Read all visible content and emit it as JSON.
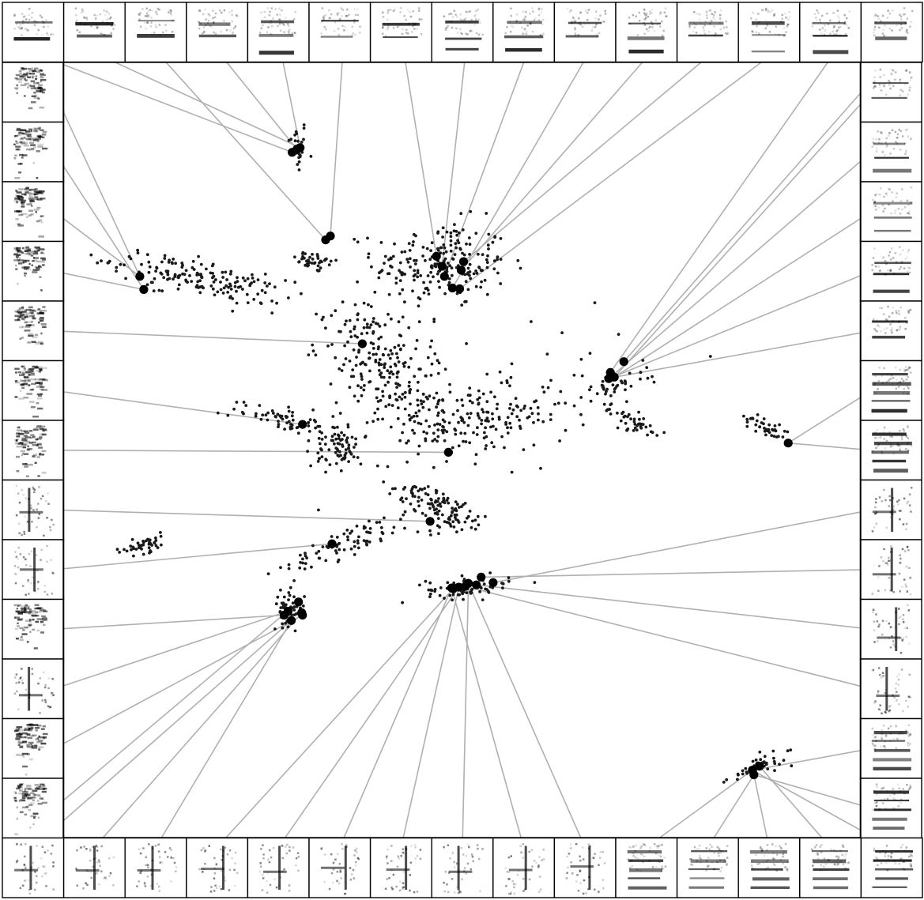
{
  "colors": {
    "point": "#1a1a1a",
    "highlight": "#000000",
    "leader": "#b0b0b0",
    "frame": "#000000",
    "spectrogram_ink": "#000000"
  },
  "chart_data": {
    "type": "scatter",
    "title": "",
    "xlabel": "",
    "ylabel": "",
    "grid": false,
    "legend": "none",
    "xlim": [
      0,
      1
    ],
    "ylim": [
      0,
      1
    ],
    "point_clusters": [
      {
        "c": [
          0.294,
          0.892
        ],
        "n": 25,
        "spread": [
          0.006,
          0.018
        ],
        "tilt": 0.0
      },
      {
        "c": [
          0.318,
          0.742
        ],
        "n": 40,
        "spread": [
          0.015,
          0.006
        ],
        "tilt": -0.25
      },
      {
        "c": [
          0.473,
          0.74
        ],
        "n": 220,
        "spread": [
          0.042,
          0.028
        ],
        "tilt": 0.0
      },
      {
        "c": [
          0.17,
          0.721
        ],
        "n": 170,
        "spread": [
          0.055,
          0.011
        ],
        "tilt": -0.22
      },
      {
        "c": [
          0.402,
          0.613
        ],
        "n": 220,
        "spread": [
          0.028,
          0.045
        ],
        "tilt": 0.8
      },
      {
        "c": [
          0.505,
          0.535
        ],
        "n": 160,
        "spread": [
          0.065,
          0.022
        ],
        "tilt": 0.08
      },
      {
        "c": [
          0.28,
          0.541
        ],
        "n": 70,
        "spread": [
          0.035,
          0.009
        ],
        "tilt": -0.18
      },
      {
        "c": [
          0.346,
          0.502
        ],
        "n": 70,
        "spread": [
          0.016,
          0.012
        ],
        "tilt": 0.5
      },
      {
        "c": [
          0.471,
          0.426
        ],
        "n": 120,
        "spread": [
          0.013,
          0.03
        ],
        "tilt": 1.05
      },
      {
        "c": [
          0.361,
          0.383
        ],
        "n": 80,
        "spread": [
          0.042,
          0.009
        ],
        "tilt": 0.38
      },
      {
        "c": [
          0.1,
          0.377
        ],
        "n": 45,
        "spread": [
          0.018,
          0.005
        ],
        "tilt": 0.28
      },
      {
        "c": [
          0.508,
          0.322
        ],
        "n": 70,
        "spread": [
          0.026,
          0.007
        ],
        "tilt": 0.05
      },
      {
        "c": [
          0.283,
          0.296
        ],
        "n": 50,
        "spread": [
          0.01,
          0.011
        ],
        "tilt": 0.0
      },
      {
        "c": [
          0.69,
          0.584
        ],
        "n": 35,
        "spread": [
          0.022,
          0.006
        ],
        "tilt": 0.22
      },
      {
        "c": [
          0.711,
          0.537
        ],
        "n": 45,
        "spread": [
          0.025,
          0.006
        ],
        "tilt": -0.42
      },
      {
        "c": [
          0.882,
          0.529
        ],
        "n": 40,
        "spread": [
          0.016,
          0.006
        ],
        "tilt": -0.5
      },
      {
        "c": [
          0.87,
          0.091
        ],
        "n": 45,
        "spread": [
          0.019,
          0.006
        ],
        "tilt": 0.45
      },
      {
        "c": [
          0.56,
          0.56
        ],
        "n": 70,
        "spread": [
          0.09,
          0.04
        ],
        "tilt": 0.25
      }
    ],
    "highlighted_points": [
      {
        "id": "h1",
        "x": 0.287,
        "y": 0.884
      },
      {
        "id": "h2",
        "x": 0.297,
        "y": 0.89
      },
      {
        "id": "h3",
        "x": 0.293,
        "y": 0.888
      },
      {
        "id": "h4",
        "x": 0.329,
        "y": 0.771
      },
      {
        "id": "h5",
        "x": 0.335,
        "y": 0.776
      },
      {
        "id": "h6",
        "x": 0.468,
        "y": 0.75
      },
      {
        "id": "h7",
        "x": 0.475,
        "y": 0.737
      },
      {
        "id": "h8",
        "x": 0.478,
        "y": 0.724
      },
      {
        "id": "h9",
        "x": 0.488,
        "y": 0.709
      },
      {
        "id": "h10",
        "x": 0.497,
        "y": 0.708
      },
      {
        "id": "h11",
        "x": 0.499,
        "y": 0.732
      },
      {
        "id": "h12",
        "x": 0.502,
        "y": 0.743
      },
      {
        "id": "h13",
        "x": 0.096,
        "y": 0.724
      },
      {
        "id": "h14",
        "x": 0.101,
        "y": 0.707
      },
      {
        "id": "h15",
        "x": 0.375,
        "y": 0.637
      },
      {
        "id": "h16",
        "x": 0.3,
        "y": 0.533
      },
      {
        "id": "h17",
        "x": 0.483,
        "y": 0.497
      },
      {
        "id": "h18",
        "x": 0.46,
        "y": 0.408
      },
      {
        "id": "h19",
        "x": 0.337,
        "y": 0.379
      },
      {
        "id": "h20",
        "x": 0.686,
        "y": 0.6
      },
      {
        "id": "h21",
        "x": 0.703,
        "y": 0.614
      },
      {
        "id": "h22",
        "x": 0.691,
        "y": 0.594
      },
      {
        "id": "h23",
        "x": 0.684,
        "y": 0.592
      },
      {
        "id": "h24",
        "x": 0.909,
        "y": 0.509
      },
      {
        "id": "h25",
        "x": 0.489,
        "y": 0.321
      },
      {
        "id": "h26",
        "x": 0.496,
        "y": 0.323
      },
      {
        "id": "h27",
        "x": 0.504,
        "y": 0.324
      },
      {
        "id": "h28",
        "x": 0.518,
        "y": 0.326
      },
      {
        "id": "h29",
        "x": 0.524,
        "y": 0.336
      },
      {
        "id": "h30",
        "x": 0.539,
        "y": 0.329
      },
      {
        "id": "h31",
        "x": 0.487,
        "y": 0.322
      },
      {
        "id": "h32",
        "x": 0.508,
        "y": 0.328
      },
      {
        "id": "h33",
        "x": 0.277,
        "y": 0.287
      },
      {
        "id": "h34",
        "x": 0.282,
        "y": 0.292
      },
      {
        "id": "h35",
        "x": 0.3,
        "y": 0.287
      },
      {
        "id": "h36",
        "x": 0.295,
        "y": 0.304
      },
      {
        "id": "h37",
        "x": 0.286,
        "y": 0.28
      },
      {
        "id": "h38",
        "x": 0.299,
        "y": 0.29
      },
      {
        "id": "h39",
        "x": 0.864,
        "y": 0.087
      },
      {
        "id": "h40",
        "x": 0.866,
        "y": 0.081
      },
      {
        "id": "h41",
        "x": 0.873,
        "y": 0.092
      }
    ],
    "thumbnails": [
      {
        "edge": "top",
        "index": 0,
        "style": "tone",
        "target": "h1"
      },
      {
        "edge": "top",
        "index": 1,
        "style": "tone",
        "target": "h2"
      },
      {
        "edge": "top",
        "index": 2,
        "style": "tone",
        "target": "h4"
      },
      {
        "edge": "top",
        "index": 3,
        "style": "tone",
        "target": "h3"
      },
      {
        "edge": "top",
        "index": 4,
        "style": "tone",
        "target": "h2"
      },
      {
        "edge": "top",
        "index": 5,
        "style": "tone",
        "target": "h5"
      },
      {
        "edge": "top",
        "index": 6,
        "style": "tone",
        "target": "h6"
      },
      {
        "edge": "top",
        "index": 7,
        "style": "tone",
        "target": "h7"
      },
      {
        "edge": "top",
        "index": 8,
        "style": "tone",
        "target": "h8"
      },
      {
        "edge": "top",
        "index": 9,
        "style": "tone",
        "target": "h9"
      },
      {
        "edge": "top",
        "index": 10,
        "style": "tone",
        "target": "h11"
      },
      {
        "edge": "top",
        "index": 11,
        "style": "tone",
        "target": "h12"
      },
      {
        "edge": "top",
        "index": 12,
        "style": "tone",
        "target": "h10"
      },
      {
        "edge": "top",
        "index": 13,
        "style": "tone",
        "target": "h20"
      },
      {
        "edge": "top",
        "index": 14,
        "style": "tone",
        "target": "h21"
      },
      {
        "edge": "left",
        "index": 0,
        "style": "noisy",
        "target": "h13"
      },
      {
        "edge": "left",
        "index": 1,
        "style": "noisy",
        "target": "h14"
      },
      {
        "edge": "left",
        "index": 2,
        "style": "noisy",
        "target": "h13"
      },
      {
        "edge": "left",
        "index": 3,
        "style": "noisy",
        "target": "h14"
      },
      {
        "edge": "left",
        "index": 4,
        "style": "noisy",
        "target": "h15"
      },
      {
        "edge": "left",
        "index": 5,
        "style": "noisy",
        "target": "h16"
      },
      {
        "edge": "left",
        "index": 6,
        "style": "noisy",
        "target": "h17"
      },
      {
        "edge": "left",
        "index": 7,
        "style": "click",
        "target": "h18"
      },
      {
        "edge": "left",
        "index": 8,
        "style": "click",
        "target": "h19"
      },
      {
        "edge": "left",
        "index": 9,
        "style": "noisy",
        "target": "h33"
      },
      {
        "edge": "left",
        "index": 10,
        "style": "click",
        "target": "h34"
      },
      {
        "edge": "left",
        "index": 11,
        "style": "noisy",
        "target": "h35"
      },
      {
        "edge": "left",
        "index": 12,
        "style": "noisy",
        "target": "h36"
      },
      {
        "edge": "right",
        "index": 0,
        "style": "tone",
        "target": "h22"
      },
      {
        "edge": "right",
        "index": 1,
        "style": "tone",
        "target": "h23"
      },
      {
        "edge": "right",
        "index": 2,
        "style": "tone",
        "target": "h22"
      },
      {
        "edge": "right",
        "index": 3,
        "style": "tone",
        "target": "h23"
      },
      {
        "edge": "right",
        "index": 4,
        "style": "tone",
        "target": "h22"
      },
      {
        "edge": "right",
        "index": 5,
        "style": "harmonic",
        "target": "h24"
      },
      {
        "edge": "right",
        "index": 6,
        "style": "harmonic",
        "target": "h24"
      },
      {
        "edge": "right",
        "index": 7,
        "style": "click",
        "target": "h30"
      },
      {
        "edge": "right",
        "index": 8,
        "style": "click",
        "target": "h29"
      },
      {
        "edge": "right",
        "index": 9,
        "style": "click",
        "target": "h28"
      },
      {
        "edge": "right",
        "index": 10,
        "style": "click",
        "target": "h27"
      },
      {
        "edge": "right",
        "index": 11,
        "style": "harmonic",
        "target": "h39"
      },
      {
        "edge": "right",
        "index": 12,
        "style": "harmonic",
        "target": "h40"
      },
      {
        "edge": "bottom",
        "index": 0,
        "style": "click",
        "target": "h37"
      },
      {
        "edge": "bottom",
        "index": 1,
        "style": "click",
        "target": "h38"
      },
      {
        "edge": "bottom",
        "index": 2,
        "style": "click",
        "target": "h37"
      },
      {
        "edge": "bottom",
        "index": 3,
        "style": "click",
        "target": "h25"
      },
      {
        "edge": "bottom",
        "index": 4,
        "style": "click",
        "target": "h26"
      },
      {
        "edge": "bottom",
        "index": 5,
        "style": "click",
        "target": "h31"
      },
      {
        "edge": "bottom",
        "index": 6,
        "style": "click",
        "target": "h26"
      },
      {
        "edge": "bottom",
        "index": 7,
        "style": "click",
        "target": "h32"
      },
      {
        "edge": "bottom",
        "index": 8,
        "style": "click",
        "target": "h31"
      },
      {
        "edge": "bottom",
        "index": 9,
        "style": "click",
        "target": "h32"
      },
      {
        "edge": "bottom",
        "index": 10,
        "style": "harmonic",
        "target": "h39"
      },
      {
        "edge": "bottom",
        "index": 11,
        "style": "harmonic",
        "target": "h41"
      },
      {
        "edge": "bottom",
        "index": 12,
        "style": "harmonic",
        "target": "h40"
      },
      {
        "edge": "bottom",
        "index": 13,
        "style": "harmonic",
        "target": "h41"
      },
      {
        "edge": "bottom",
        "index": 14,
        "style": "harmonic",
        "target": "h39"
      }
    ]
  }
}
